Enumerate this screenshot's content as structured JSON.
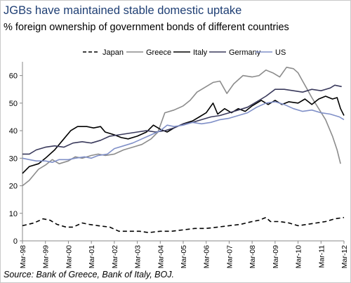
{
  "title": "JGBs have maintained stable domestic uptake",
  "subtitle": "% foreign ownership of government bonds of different countries",
  "source": "Source: Bank of Greece, Bank of Italy, BOJ.",
  "chart_data": {
    "type": "line",
    "title": "JGBs have maintained stable domestic uptake",
    "subtitle": "% foreign ownership of government bonds of different countries",
    "xlabel": "",
    "ylabel": "",
    "x_tick_labels": [
      "Mar-98",
      "Mar-99",
      "Mar-00",
      "Mar-01",
      "Mar-02",
      "Mar-03",
      "Mar-04",
      "Mar-05",
      "Mar-06",
      "Mar-07",
      "Mar-08",
      "Mar-09",
      "Mar-10",
      "Mar-11",
      "Mar-12"
    ],
    "xlim": [
      1998.0,
      2012.0
    ],
    "ylim": [
      0,
      65
    ],
    "y_ticks": [
      0,
      10,
      20,
      30,
      40,
      50,
      60
    ],
    "grid": false,
    "legend_position": "top",
    "series": [
      {
        "name": "Japan",
        "color": "#000000",
        "style": "dashed",
        "points": [
          [
            1998.0,
            5.5
          ],
          [
            1998.5,
            6.5
          ],
          [
            1998.9,
            8.0
          ],
          [
            1999.2,
            7.5
          ],
          [
            1999.5,
            6.0
          ],
          [
            1999.9,
            5.0
          ],
          [
            2000.2,
            5.0
          ],
          [
            2000.6,
            6.5
          ],
          [
            2000.9,
            6.0
          ],
          [
            2001.3,
            5.5
          ],
          [
            2001.8,
            5.0
          ],
          [
            2002.2,
            3.5
          ],
          [
            2002.7,
            3.5
          ],
          [
            2003.1,
            3.5
          ],
          [
            2003.5,
            3.0
          ],
          [
            2004.0,
            3.5
          ],
          [
            2004.5,
            3.5
          ],
          [
            2005.0,
            4.0
          ],
          [
            2005.5,
            4.5
          ],
          [
            2006.0,
            4.5
          ],
          [
            2006.5,
            5.0
          ],
          [
            2007.0,
            5.5
          ],
          [
            2007.5,
            6.0
          ],
          [
            2008.0,
            7.0
          ],
          [
            2008.3,
            7.5
          ],
          [
            2008.6,
            8.5
          ],
          [
            2008.8,
            7.0
          ],
          [
            2009.2,
            7.0
          ],
          [
            2009.6,
            6.5
          ],
          [
            2010.0,
            5.5
          ],
          [
            2010.4,
            6.0
          ],
          [
            2010.8,
            6.5
          ],
          [
            2011.2,
            7.0
          ],
          [
            2011.6,
            8.0
          ],
          [
            2012.0,
            8.5
          ]
        ]
      },
      {
        "name": "Greece",
        "color": "#8c8c8c",
        "style": "solid",
        "points": [
          [
            1998.0,
            20.0
          ],
          [
            1998.3,
            22.0
          ],
          [
            1998.7,
            26.0
          ],
          [
            1999.0,
            27.5
          ],
          [
            1999.3,
            29.5
          ],
          [
            1999.6,
            28.0
          ],
          [
            2000.0,
            29.0
          ],
          [
            2000.3,
            30.5
          ],
          [
            2000.6,
            30.0
          ],
          [
            2001.0,
            31.0
          ],
          [
            2001.3,
            31.5
          ],
          [
            2001.6,
            31.0
          ],
          [
            2002.0,
            31.5
          ],
          [
            2002.4,
            33.0
          ],
          [
            2002.8,
            34.0
          ],
          [
            2003.2,
            35.0
          ],
          [
            2003.6,
            37.0
          ],
          [
            2003.9,
            39.5
          ],
          [
            2004.2,
            46.5
          ],
          [
            2004.6,
            47.5
          ],
          [
            2005.0,
            49.0
          ],
          [
            2005.3,
            51.0
          ],
          [
            2005.6,
            54.0
          ],
          [
            2006.0,
            56.0
          ],
          [
            2006.3,
            57.5
          ],
          [
            2006.6,
            58.0
          ],
          [
            2006.9,
            53.5
          ],
          [
            2007.2,
            57.0
          ],
          [
            2007.6,
            60.0
          ],
          [
            2008.0,
            59.5
          ],
          [
            2008.3,
            60.0
          ],
          [
            2008.6,
            62.0
          ],
          [
            2008.9,
            61.0
          ],
          [
            2009.2,
            59.5
          ],
          [
            2009.5,
            63.0
          ],
          [
            2009.8,
            62.5
          ],
          [
            2010.0,
            61.0
          ],
          [
            2010.2,
            58.0
          ],
          [
            2010.4,
            55.0
          ],
          [
            2010.6,
            52.0
          ],
          [
            2010.9,
            48.0
          ],
          [
            2011.2,
            44.0
          ],
          [
            2011.5,
            38.0
          ],
          [
            2011.7,
            33.0
          ],
          [
            2011.85,
            28.0
          ]
        ]
      },
      {
        "name": "Italy",
        "color": "#000000",
        "style": "solid",
        "points": [
          [
            1998.0,
            24.5
          ],
          [
            1998.3,
            27.0
          ],
          [
            1998.7,
            28.0
          ],
          [
            1999.0,
            30.0
          ],
          [
            1999.4,
            33.0
          ],
          [
            1999.8,
            37.0
          ],
          [
            2000.1,
            40.0
          ],
          [
            2000.4,
            41.5
          ],
          [
            2000.8,
            41.5
          ],
          [
            2001.1,
            41.0
          ],
          [
            2001.4,
            41.5
          ],
          [
            2001.6,
            39.5
          ],
          [
            2002.0,
            38.5
          ],
          [
            2002.3,
            37.5
          ],
          [
            2002.6,
            37.0
          ],
          [
            2003.0,
            38.0
          ],
          [
            2003.4,
            39.5
          ],
          [
            2003.7,
            42.0
          ],
          [
            2004.0,
            40.5
          ],
          [
            2004.3,
            39.5
          ],
          [
            2004.6,
            41.0
          ],
          [
            2005.0,
            42.5
          ],
          [
            2005.4,
            43.5
          ],
          [
            2005.7,
            45.0
          ],
          [
            2006.0,
            46.5
          ],
          [
            2006.3,
            50.0
          ],
          [
            2006.5,
            46.0
          ],
          [
            2006.8,
            48.0
          ],
          [
            2007.1,
            46.5
          ],
          [
            2007.4,
            48.0
          ],
          [
            2007.7,
            47.0
          ],
          [
            2008.0,
            49.0
          ],
          [
            2008.4,
            51.0
          ],
          [
            2008.7,
            49.5
          ],
          [
            2009.0,
            51.0
          ],
          [
            2009.3,
            49.5
          ],
          [
            2009.6,
            50.5
          ],
          [
            2010.0,
            50.0
          ],
          [
            2010.3,
            51.5
          ],
          [
            2010.6,
            49.5
          ],
          [
            2010.9,
            51.5
          ],
          [
            2011.2,
            52.5
          ],
          [
            2011.5,
            51.5
          ],
          [
            2011.7,
            52.0
          ],
          [
            2011.85,
            48.0
          ],
          [
            2012.0,
            45.5
          ]
        ]
      },
      {
        "name": "Germany",
        "color": "#3a3a5c",
        "style": "solid",
        "points": [
          [
            1998.0,
            31.5
          ],
          [
            1998.3,
            31.5
          ],
          [
            1998.6,
            33.0
          ],
          [
            1999.0,
            34.0
          ],
          [
            1999.4,
            34.5
          ],
          [
            1999.8,
            34.0
          ],
          [
            2000.2,
            35.5
          ],
          [
            2000.6,
            36.0
          ],
          [
            2001.0,
            35.5
          ],
          [
            2001.4,
            36.5
          ],
          [
            2001.8,
            38.0
          ],
          [
            2002.2,
            38.5
          ],
          [
            2002.6,
            39.0
          ],
          [
            2003.0,
            39.5
          ],
          [
            2003.4,
            40.0
          ],
          [
            2003.8,
            39.5
          ],
          [
            2004.2,
            40.0
          ],
          [
            2004.6,
            41.0
          ],
          [
            2005.0,
            42.5
          ],
          [
            2005.4,
            43.0
          ],
          [
            2005.8,
            44.0
          ],
          [
            2006.2,
            45.0
          ],
          [
            2006.6,
            45.5
          ],
          [
            2007.0,
            46.5
          ],
          [
            2007.4,
            47.5
          ],
          [
            2007.8,
            48.5
          ],
          [
            2008.2,
            50.5
          ],
          [
            2008.6,
            52.5
          ],
          [
            2009.0,
            55.0
          ],
          [
            2009.4,
            55.0
          ],
          [
            2009.8,
            54.5
          ],
          [
            2010.2,
            54.0
          ],
          [
            2010.6,
            55.0
          ],
          [
            2011.0,
            54.5
          ],
          [
            2011.4,
            55.5
          ],
          [
            2011.6,
            56.5
          ],
          [
            2011.9,
            56.0
          ]
        ]
      },
      {
        "name": "US",
        "color": "#8090c8",
        "style": "solid",
        "points": [
          [
            1998.0,
            30.0
          ],
          [
            1998.3,
            29.5
          ],
          [
            1998.6,
            29.0
          ],
          [
            1999.0,
            29.0
          ],
          [
            1999.3,
            28.5
          ],
          [
            1999.6,
            29.5
          ],
          [
            2000.0,
            29.5
          ],
          [
            2000.3,
            30.0
          ],
          [
            2000.7,
            30.5
          ],
          [
            2001.0,
            30.0
          ],
          [
            2001.3,
            31.0
          ],
          [
            2001.7,
            31.5
          ],
          [
            2002.0,
            33.5
          ],
          [
            2002.4,
            34.5
          ],
          [
            2002.8,
            35.5
          ],
          [
            2003.2,
            37.0
          ],
          [
            2003.6,
            38.5
          ],
          [
            2004.0,
            40.0
          ],
          [
            2004.3,
            42.0
          ],
          [
            2004.6,
            41.5
          ],
          [
            2005.0,
            42.0
          ],
          [
            2005.4,
            43.0
          ],
          [
            2005.8,
            42.5
          ],
          [
            2006.2,
            43.0
          ],
          [
            2006.6,
            44.0
          ],
          [
            2007.0,
            44.5
          ],
          [
            2007.4,
            45.5
          ],
          [
            2007.8,
            46.5
          ],
          [
            2008.2,
            48.5
          ],
          [
            2008.6,
            50.0
          ],
          [
            2009.0,
            50.5
          ],
          [
            2009.4,
            49.5
          ],
          [
            2009.8,
            48.0
          ],
          [
            2010.2,
            47.0
          ],
          [
            2010.6,
            47.5
          ],
          [
            2011.0,
            46.5
          ],
          [
            2011.4,
            46.0
          ],
          [
            2011.8,
            45.0
          ],
          [
            2012.0,
            44.0
          ]
        ]
      }
    ]
  }
}
